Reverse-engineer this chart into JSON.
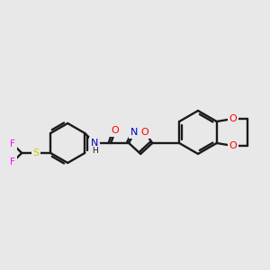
{
  "background_color": "#e8e8e8",
  "bond_color": "#1a1a1a",
  "atom_colors": {
    "O": "#ff0000",
    "N": "#0000cc",
    "S": "#cccc00",
    "F": "#ff00ff",
    "C": "#1a1a1a",
    "H": "#1a1a1a"
  },
  "figsize": [
    3.0,
    3.0
  ],
  "dpi": 100
}
